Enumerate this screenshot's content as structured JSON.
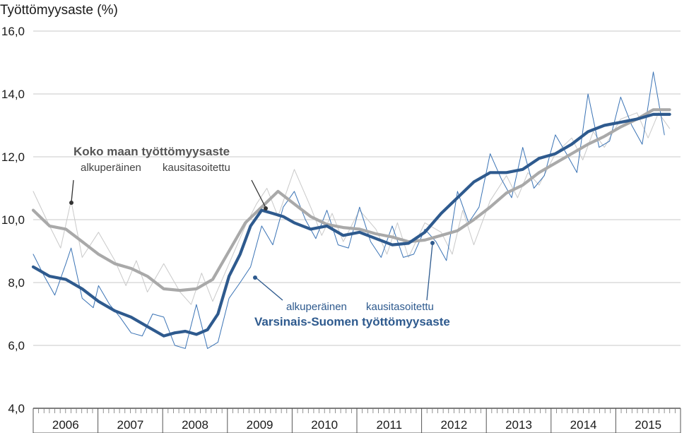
{
  "chart_data": {
    "type": "line",
    "title": "",
    "ylabel": "Työttömyysaste (%)",
    "xlabel": "",
    "ylim": [
      4.0,
      16.0
    ],
    "yticks": [
      "4,0",
      "6,0",
      "8,0",
      "10,0",
      "12,0",
      "14,0",
      "16,0"
    ],
    "yticks_values": [
      4,
      6,
      8,
      10,
      12,
      14,
      16
    ],
    "x_years": [
      "2006",
      "2007",
      "2008",
      "2009",
      "2010",
      "2011",
      "2012",
      "2013",
      "2014",
      "2015"
    ],
    "x_start": 2006.0,
    "x_end": 2015.917,
    "grid": "horizontal",
    "annotations": {
      "koko_title": "Koko maan työttömyysaste",
      "koko_sub_orig": "alkuperäinen",
      "koko_sub_sa": "kausitasoitettu",
      "vs_sub_orig": "alkuperäinen",
      "vs_sub_sa": "kausitasoitettu",
      "vs_title": "Varsinais-Suomen työttömyysaste"
    },
    "series": [
      {
        "key": "koko_sa",
        "color": "#a9a9a9",
        "x": [
          2006.0,
          2006.25,
          2006.5,
          2006.75,
          2007.0,
          2007.25,
          2007.5,
          2007.75,
          2008.0,
          2008.25,
          2008.5,
          2008.75,
          2009.0,
          2009.25,
          2009.5,
          2009.75,
          2010.0,
          2010.25,
          2010.5,
          2010.75,
          2011.0,
          2011.25,
          2011.5,
          2011.75,
          2012.0,
          2012.25,
          2012.5,
          2012.75,
          2013.0,
          2013.25,
          2013.5,
          2013.75,
          2014.0,
          2014.25,
          2014.5,
          2014.75,
          2015.0,
          2015.25,
          2015.5,
          2015.75
        ],
        "y": [
          10.3,
          9.8,
          9.7,
          9.3,
          8.9,
          8.6,
          8.45,
          8.2,
          7.8,
          7.75,
          7.8,
          8.1,
          9.0,
          9.9,
          10.4,
          10.9,
          10.5,
          10.1,
          9.85,
          9.75,
          9.7,
          9.55,
          9.45,
          9.3,
          9.35,
          9.5,
          9.65,
          10.0,
          10.4,
          10.85,
          11.1,
          11.5,
          11.8,
          12.1,
          12.4,
          12.65,
          12.95,
          13.2,
          13.5,
          13.5
        ]
      },
      {
        "key": "koko_orig",
        "color": "#c9c9c9",
        "x": [
          2006.0,
          2006.25,
          2006.42,
          2006.58,
          2006.75,
          2007.0,
          2007.25,
          2007.42,
          2007.58,
          2007.75,
          2008.0,
          2008.25,
          2008.42,
          2008.58,
          2008.75,
          2009.0,
          2009.25,
          2009.42,
          2009.58,
          2009.75,
          2010.0,
          2010.25,
          2010.42,
          2010.58,
          2010.75,
          2011.0,
          2011.25,
          2011.42,
          2011.58,
          2011.75,
          2012.0,
          2012.25,
          2012.42,
          2012.58,
          2012.75,
          2013.0,
          2013.25,
          2013.42,
          2013.58,
          2013.75,
          2014.0,
          2014.25,
          2014.42,
          2014.58,
          2014.75,
          2015.0,
          2015.25,
          2015.42,
          2015.58,
          2015.75
        ],
        "y": [
          10.9,
          9.8,
          9.1,
          10.6,
          8.8,
          9.6,
          8.7,
          7.9,
          8.7,
          7.7,
          8.6,
          7.7,
          7.3,
          8.3,
          7.4,
          8.6,
          9.8,
          10.5,
          11.0,
          10.1,
          11.6,
          10.4,
          9.5,
          10.2,
          9.3,
          10.3,
          9.7,
          8.9,
          9.9,
          8.8,
          9.9,
          9.6,
          8.9,
          10.3,
          9.2,
          10.6,
          11.4,
          10.7,
          11.5,
          11.1,
          12.1,
          12.6,
          11.9,
          12.8,
          12.3,
          13.2,
          13.4,
          12.6,
          13.4,
          12.9
        ]
      },
      {
        "key": "vs_orig",
        "color": "#3a73b5",
        "x": [
          2006.0,
          2006.17,
          2006.33,
          2006.5,
          2006.58,
          2006.75,
          2006.92,
          2007.0,
          2007.17,
          2007.33,
          2007.5,
          2007.67,
          2007.83,
          2008.0,
          2008.17,
          2008.33,
          2008.5,
          2008.67,
          2008.83,
          2009.0,
          2009.17,
          2009.33,
          2009.5,
          2009.67,
          2009.83,
          2010.0,
          2010.17,
          2010.33,
          2010.5,
          2010.67,
          2010.83,
          2011.0,
          2011.17,
          2011.33,
          2011.5,
          2011.67,
          2011.83,
          2012.0,
          2012.17,
          2012.33,
          2012.5,
          2012.67,
          2012.83,
          2013.0,
          2013.17,
          2013.33,
          2013.5,
          2013.67,
          2013.83,
          2014.0,
          2014.17,
          2014.33,
          2014.5,
          2014.67,
          2014.83,
          2015.0,
          2015.17,
          2015.33,
          2015.5,
          2015.67
        ],
        "y": [
          8.9,
          8.2,
          7.6,
          8.6,
          9.1,
          7.5,
          7.2,
          7.9,
          7.3,
          6.9,
          6.4,
          6.3,
          7.0,
          6.9,
          6.0,
          5.9,
          7.3,
          5.9,
          6.1,
          7.5,
          8.0,
          8.5,
          9.8,
          9.2,
          10.4,
          10.9,
          10.0,
          9.4,
          10.3,
          9.2,
          9.1,
          10.4,
          9.3,
          8.8,
          9.8,
          8.8,
          8.9,
          9.7,
          9.3,
          8.7,
          10.9,
          9.9,
          10.4,
          12.1,
          11.3,
          10.7,
          12.3,
          11.0,
          11.4,
          12.7,
          12.1,
          11.5,
          14.0,
          12.3,
          12.5,
          13.9,
          13.0,
          12.4,
          14.7,
          12.7
        ]
      },
      {
        "key": "vs_sa",
        "color": "#2e5a8e",
        "x": [
          2006.0,
          2006.25,
          2006.5,
          2006.75,
          2007.0,
          2007.25,
          2007.5,
          2007.75,
          2008.0,
          2008.17,
          2008.33,
          2008.5,
          2008.67,
          2008.83,
          2009.0,
          2009.17,
          2009.33,
          2009.5,
          2009.67,
          2009.83,
          2010.0,
          2010.25,
          2010.5,
          2010.75,
          2011.0,
          2011.25,
          2011.5,
          2011.75,
          2012.0,
          2012.25,
          2012.5,
          2012.75,
          2013.0,
          2013.25,
          2013.5,
          2013.75,
          2014.0,
          2014.25,
          2014.5,
          2014.75,
          2015.0,
          2015.25,
          2015.5,
          2015.75
        ],
        "y": [
          8.5,
          8.2,
          8.1,
          7.8,
          7.4,
          7.1,
          6.9,
          6.6,
          6.3,
          6.4,
          6.45,
          6.35,
          6.5,
          7.0,
          8.2,
          8.9,
          9.8,
          10.3,
          10.2,
          10.1,
          9.9,
          9.7,
          9.8,
          9.5,
          9.6,
          9.4,
          9.2,
          9.25,
          9.6,
          10.2,
          10.7,
          11.2,
          11.5,
          11.5,
          11.6,
          11.95,
          12.1,
          12.4,
          12.8,
          13.0,
          13.1,
          13.2,
          13.35,
          13.35
        ]
      }
    ]
  }
}
